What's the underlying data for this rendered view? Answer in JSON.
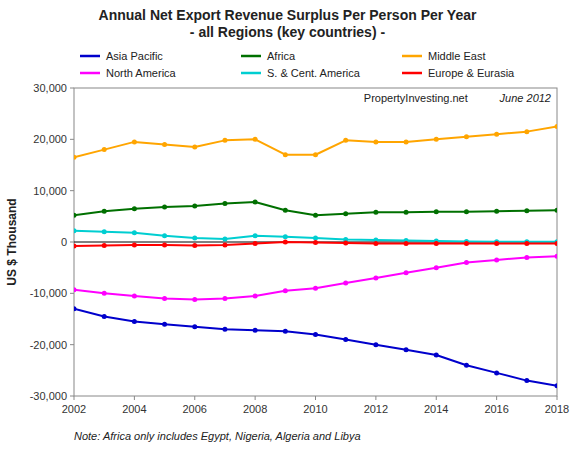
{
  "chart_data": {
    "type": "line",
    "title": "Annual Net Export Revenue Surplus Per Person Per Year\n - all Regions (key countries) -",
    "ylabel": "US $ Thousand",
    "annotations": [
      "PropertyInvesting.net",
      "June 2012",
      "Note: Africa only includes Egypt, Nigeria, Algeria and Libya"
    ],
    "x": [
      2002,
      2003,
      2004,
      2005,
      2006,
      2007,
      2008,
      2009,
      2010,
      2011,
      2012,
      2013,
      2014,
      2015,
      2016,
      2017,
      2018
    ],
    "series": [
      {
        "name": "Asia Pacific",
        "color": "#0000CC",
        "values": [
          -13000,
          -14500,
          -15500,
          -16000,
          -16500,
          -17000,
          -17200,
          -17400,
          -18000,
          -19000,
          -20000,
          -21000,
          -22000,
          -24000,
          -25500,
          -27000,
          -28000
        ]
      },
      {
        "name": "Africa",
        "color": "#007000",
        "values": [
          5200,
          6000,
          6500,
          6800,
          7000,
          7500,
          7800,
          6200,
          5200,
          5500,
          5800,
          5800,
          5900,
          5900,
          6000,
          6100,
          6200
        ]
      },
      {
        "name": "Middle East",
        "color": "#FFA500",
        "values": [
          16500,
          18000,
          19500,
          19000,
          18500,
          19800,
          20000,
          17000,
          17000,
          19800,
          19500,
          19500,
          20000,
          20500,
          21000,
          21500,
          22500
        ]
      },
      {
        "name": "North America",
        "color": "#FF00FF",
        "values": [
          -9300,
          -10000,
          -10500,
          -11000,
          -11200,
          -11000,
          -10500,
          -9500,
          -9000,
          -8000,
          -7000,
          -6000,
          -5000,
          -4000,
          -3500,
          -3000,
          -2800
        ]
      },
      {
        "name": "S. & Cent. America",
        "color": "#00CED1",
        "values": [
          2200,
          2000,
          1800,
          1200,
          800,
          600,
          1200,
          1000,
          800,
          500,
          400,
          300,
          200,
          100,
          50,
          50,
          50
        ]
      },
      {
        "name": "Europe & Eurasia",
        "color": "#FF0000",
        "values": [
          -800,
          -700,
          -600,
          -600,
          -700,
          -600,
          -300,
          0,
          -100,
          -200,
          -300,
          -300,
          -300,
          -300,
          -300,
          -300,
          -300
        ]
      }
    ],
    "marker": "circle",
    "xlim": [
      2002,
      2018
    ],
    "xticks": [
      2002,
      2004,
      2006,
      2008,
      2010,
      2012,
      2014,
      2016,
      2018
    ],
    "ylim": [
      -30000,
      30000
    ],
    "yticks": [
      {
        "value": -30000,
        "label": "-30,000"
      },
      {
        "value": -20000,
        "label": "-20,000"
      },
      {
        "value": -10000,
        "label": "-10,000"
      },
      0,
      {
        "value": 10000,
        "label": "10,000"
      },
      {
        "value": 20000,
        "label": "20,000"
      },
      {
        "value": 30000,
        "label": "30,000"
      }
    ],
    "grid": false,
    "legend": "top"
  }
}
